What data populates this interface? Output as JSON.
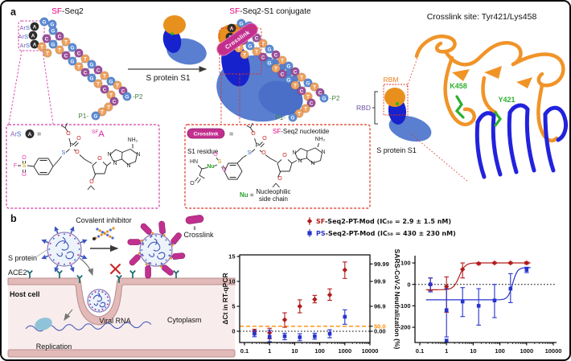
{
  "colors": {
    "sf_pink": "#e6007e",
    "crosslink": "#c2308f",
    "nt_G": "#5b8bd6",
    "nt_C": "#9b4f9b",
    "nt_T": "#eda15f",
    "nt_A": "#2d2d2d",
    "ribbon_orange": "#f09428",
    "ribbon_blue": "#2222dd",
    "residue_green": "#2eb02e",
    "chart_red": "#b31b1b",
    "chart_blue": "#2733cc",
    "orange_ref": "#ff8c00",
    "p_green": "#3f7d3f",
    "ace2_teal": "#1b6b70",
    "membrane": "#e2bab8",
    "cytoplasm": "#f8ecec"
  },
  "panel_a": {
    "label": "a",
    "sfseq2": {
      "prefix": "SF",
      "rest": "-Seq2"
    },
    "conjugate": {
      "prefix": "SF",
      "rest": "-Seq2-S1 conjugate"
    },
    "arrow_label": "S protein S1",
    "crosslink_site_title": "Crosslink site: Tyr421/Lys458",
    "ars": "Ar",
    "ars_s": "S",
    "p1": "P1-",
    "p2": "-P2",
    "crosslink_banner": "Crosslink",
    "rbm": "RBM",
    "rbd": "RBD",
    "s1_caption": "S protein S1",
    "k458": "K458",
    "y421": "Y421",
    "aptamer": {
      "nucleotides": [
        [
          "A",
          17,
          17
        ],
        [
          "A",
          15,
          28
        ],
        [
          "A",
          17,
          39
        ],
        [
          "G",
          29,
          11
        ],
        [
          "G",
          39,
          14
        ],
        [
          "G",
          40,
          22
        ],
        [
          "C",
          48,
          29
        ],
        [
          "T",
          56,
          36
        ],
        [
          "G",
          64,
          43
        ],
        [
          "C",
          72,
          50
        ],
        [
          "T",
          80,
          57
        ],
        [
          "G",
          88,
          64
        ],
        [
          "C",
          96,
          71
        ],
        [
          "T",
          104,
          78
        ],
        [
          "G",
          112,
          85
        ],
        [
          "C",
          32,
          32
        ],
        [
          "G",
          40,
          39
        ],
        [
          "T",
          48,
          46
        ],
        [
          "C",
          56,
          53
        ],
        [
          "G",
          64,
          60
        ],
        [
          "T",
          72,
          67
        ],
        [
          "C",
          80,
          74
        ],
        [
          "G",
          88,
          81
        ],
        [
          "T",
          96,
          88
        ],
        [
          "C",
          104,
          95
        ],
        [
          "T",
          26,
          42
        ],
        [
          "T",
          33,
          50
        ],
        [
          "T",
          120,
          90
        ],
        [
          "C",
          127,
          97
        ],
        [
          "G",
          132,
          104
        ],
        [
          "T",
          112,
          102
        ],
        [
          "C",
          116,
          110
        ],
        [
          "T",
          109,
          117
        ],
        [
          "T",
          101,
          123
        ],
        [
          "G",
          93,
          128
        ]
      ],
      "pairs": [
        [
          5,
          15
        ],
        [
          6,
          16
        ],
        [
          7,
          17
        ],
        [
          8,
          18
        ],
        [
          9,
          19
        ],
        [
          10,
          20
        ],
        [
          11,
          21
        ],
        [
          12,
          22
        ],
        [
          13,
          23
        ],
        [
          14,
          24
        ]
      ]
    },
    "box1": {
      "ars": "Ar",
      "ars_s": "S",
      "a_circle": "A",
      "eq": "=",
      "sf_sup": "SF",
      "sf_a": "A",
      "atoms": [
        [
          "F",
          17,
          206,
          "pink2"
        ],
        [
          "S",
          28,
          206,
          "yellowS"
        ],
        [
          "O",
          28,
          196,
          "pink2"
        ],
        [
          "O",
          28,
          217,
          "pink2"
        ],
        [
          "S",
          77,
          190,
          "blueS"
        ],
        [
          "P",
          87,
          181,
          "dark"
        ],
        [
          "O",
          96,
          172,
          "red"
        ],
        [
          "O",
          83,
          166,
          "red"
        ],
        [
          "O",
          94,
          189,
          "red"
        ],
        [
          "O",
          122,
          197,
          "red"
        ],
        [
          "O",
          112,
          226,
          "red"
        ],
        [
          "NH₂",
          163,
          174,
          "dark"
        ],
        [
          "N",
          134,
          192,
          "dark"
        ],
        [
          "N",
          141,
          203,
          "dark"
        ],
        [
          "N",
          170,
          192,
          "dark"
        ],
        [
          "N",
          158,
          206,
          "dark"
        ]
      ]
    },
    "box2": {
      "pill": "Crosslink",
      "eq": "=",
      "nt_prefix": "SF",
      "nt_rest": "-Seq2 nucleotide",
      "s1_residue": "S1 residue",
      "nu_def_nu": "Nu",
      "nu_def_eq": " =",
      "nu_def1": "Nucleophilic",
      "nu_def2": "side chain",
      "atoms": [
        [
          "HN",
          239,
          201,
          "dark"
        ],
        [
          "O",
          237,
          228,
          "dark"
        ],
        [
          "Nu",
          260,
          207,
          "green"
        ],
        [
          "S",
          271,
          201,
          "yellowS"
        ],
        [
          "O",
          266,
          192,
          "pink2"
        ],
        [
          "O",
          277,
          211,
          "pink2"
        ],
        [
          "S",
          308,
          190,
          "blueS"
        ],
        [
          "P",
          318,
          181,
          "dark"
        ],
        [
          "O",
          327,
          172,
          "red"
        ],
        [
          "O",
          313,
          166,
          "red"
        ],
        [
          "O",
          326,
          190,
          "red"
        ],
        [
          "O",
          352,
          193,
          "red"
        ],
        [
          "O",
          346,
          222,
          "red"
        ],
        [
          "NH₂",
          396,
          173,
          "dark"
        ],
        [
          "N",
          364,
          190,
          "dark"
        ],
        [
          "N",
          371,
          200,
          "dark"
        ],
        [
          "N",
          400,
          189,
          "dark"
        ],
        [
          "N",
          387,
          203,
          "dark"
        ]
      ]
    }
  },
  "panel_b": {
    "label": "b",
    "covalent_inhibitor": "Covalent inhibitor",
    "equiv": "II",
    "crosslink": "Crosslink",
    "s_protein": "S protein",
    "ace2": "ACE2",
    "host_cell": "Host cell",
    "viral_rna": "Viral RNA",
    "cytoplasm": "Cytoplasm",
    "replication": "Replication"
  },
  "legend": {
    "items": [
      {
        "prefix": "SF",
        "rest": "-Seq2-PT-Mod (IC₅₀ = 2.9 ± 1.5 nM)"
      },
      {
        "prefix": "PS",
        "rest": "-Seq2-PT-Mod (IC₅₀ = 430 ± 230 nM)"
      }
    ]
  },
  "chart_data": [
    {
      "type": "scatter",
      "xscale": "log",
      "xlim": [
        0.1,
        10000
      ],
      "xticks": [
        0.1,
        1,
        10,
        100,
        1000,
        10000
      ],
      "xtick_labels": [
        "0.1",
        "1",
        "10",
        "100",
        "1000",
        "10000"
      ],
      "ylabel": "ΔCt in RT-qPCR",
      "yticks": [
        0,
        5,
        10,
        15
      ],
      "ylim": [
        -2.3,
        15.3
      ],
      "right_axis_ticks": [
        {
          "v": 13.5,
          "label": "99.99"
        },
        {
          "v": 10,
          "label": "99.9"
        },
        {
          "v": 5,
          "label": "96.9"
        },
        {
          "v": 1,
          "label": "50.0",
          "highlight": true
        },
        {
          "v": 0,
          "label": "0.00"
        }
      ],
      "ref_lines": [
        {
          "y": 1,
          "color": "#ff8c00",
          "style": "dashed"
        },
        {
          "y": 0,
          "color": "#000000",
          "style": "dotted"
        }
      ],
      "series": [
        {
          "name": "SF-Seq2-PT-Mod",
          "color": "#b31b1b",
          "marker": "diamond",
          "x": [
            0.25,
            1,
            4,
            16,
            63,
            250,
            1000
          ],
          "y": [
            0,
            -0.3,
            2.3,
            5.0,
            6.4,
            7.3,
            12.3
          ],
          "err_lo": [
            -0.5,
            -1.5,
            0.8,
            3.7,
            5.7,
            6.2,
            10.6
          ],
          "err_hi": [
            0.4,
            0.6,
            3.7,
            6.3,
            7.2,
            8.5,
            13.9
          ]
        },
        {
          "name": "PS-Seq2-PT-Mod",
          "color": "#2733cc",
          "marker": "square",
          "x": [
            0.25,
            1,
            4,
            16,
            63,
            250,
            1000
          ],
          "y": [
            -0.5,
            -1.1,
            -1.0,
            -1.2,
            -1.0,
            -0.5,
            2.9
          ],
          "err_lo": [
            -1.1,
            -2.1,
            -1.7,
            -1.9,
            -1.6,
            -1.3,
            1.4
          ],
          "err_hi": [
            0.1,
            0.2,
            -0.4,
            -0.5,
            -0.4,
            0.3,
            4.3
          ]
        }
      ]
    },
    {
      "type": "scatter",
      "xscale": "log",
      "xlim": [
        0.1,
        10000
      ],
      "xticks": [
        0.1,
        1,
        10,
        100,
        1000,
        10000
      ],
      "xtick_labels": [
        "0.1",
        "1",
        "10",
        "100",
        "1000",
        "10000"
      ],
      "ylabel": "SARS-CoV-2 Neutralization (%)",
      "yticks": [
        100,
        0,
        -100,
        -200
      ],
      "ylim": [
        -270,
        134
      ],
      "ref_lines": [
        {
          "y": 0,
          "color": "#000000",
          "style": "dotted"
        }
      ],
      "series": [
        {
          "name": "SF-Seq2-PT-Mod",
          "color": "#b31b1b",
          "marker": "diamond",
          "x": [
            0.25,
            1,
            4,
            16,
            63,
            250,
            1000
          ],
          "y": [
            0,
            -10,
            70,
            97,
            100,
            100,
            100
          ],
          "err_lo": [
            -30,
            -130,
            30,
            93,
            97,
            97,
            95
          ],
          "err_hi": [
            30,
            35,
            100,
            101,
            103,
            103,
            105
          ],
          "fit": {
            "bottom": -25,
            "top": 100,
            "ec50": 3,
            "hill": 4
          }
        },
        {
          "name": "PS-Seq2-PT-Mod",
          "color": "#2733cc",
          "marker": "square",
          "x": [
            0.25,
            1,
            4,
            16,
            63,
            250,
            1000
          ],
          "y": [
            0,
            -120,
            -80,
            -100,
            -75,
            -20,
            68
          ],
          "err_lo": [
            -35,
            -245,
            -150,
            -190,
            -155,
            -85,
            55
          ],
          "err_hi": [
            30,
            -20,
            -15,
            -20,
            0,
            50,
            80
          ],
          "fit": {
            "bottom": -72,
            "top": 78,
            "ec50": 300,
            "hill": 5
          },
          "extra_points": [
            [
              1,
              -262
            ]
          ]
        }
      ]
    }
  ]
}
